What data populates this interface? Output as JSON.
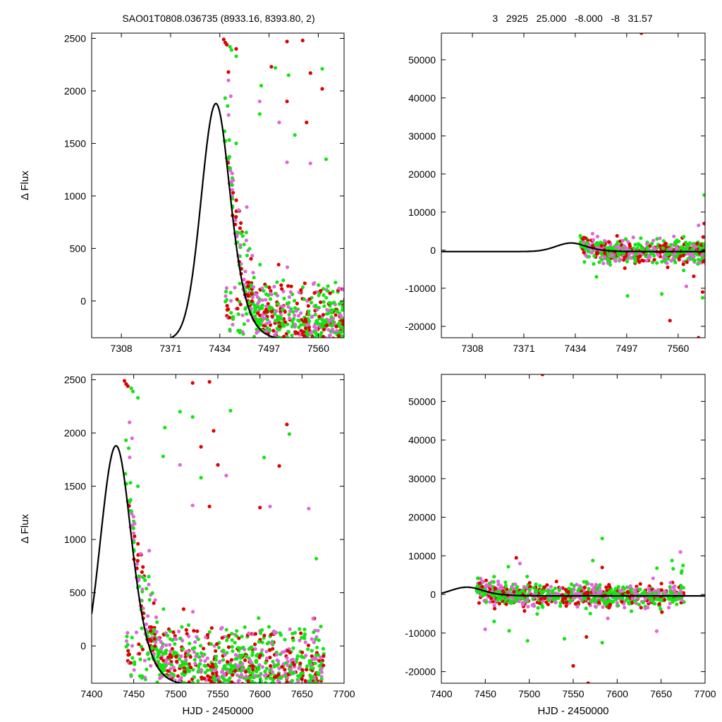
{
  "title_left": "SAO01T0808.036735 (8933.16, 8393.80,    2)",
  "title_right": "3   2925   25.000   -8.000   -8   31.57",
  "colors": {
    "red": "#e00000",
    "green": "#11e611",
    "magenta": "#e066d9",
    "curve": "#000000",
    "axis": "#000000"
  },
  "chart_data": [
    {
      "id": "top-left",
      "type": "scatter",
      "xlim": [
        7270,
        7593
      ],
      "ylim": [
        -350,
        2550
      ],
      "xticks": [
        7308,
        7371,
        7434,
        7497,
        7560
      ],
      "yticks": [
        0,
        500,
        1000,
        1500,
        2000,
        2500
      ],
      "xlabel": "",
      "ylabel": "Δ Flux",
      "data_x_range": [
        7440,
        7676
      ],
      "model": {
        "type": "peak",
        "peak_x": 7429,
        "peak_y": 1880,
        "baseline": -370,
        "rise_scale": 25,
        "fall_scale": 24
      },
      "series": [
        {
          "color": "red",
          "points": [
            [
              7439,
              2490
            ],
            [
              7441,
              2460
            ],
            [
              7443,
              2440
            ],
            [
              7520,
              2470
            ],
            [
              7540,
              2480
            ],
            [
              7550,
              2170
            ],
            [
              7545,
              1700
            ],
            [
              7565,
              2020
            ],
            [
              7520,
              1900
            ],
            [
              7445,
              2180
            ],
            [
              7500,
              2230
            ],
            [
              7455,
              2400
            ]
          ]
        },
        {
          "color": "green",
          "points": [
            [
              7447,
              2420
            ],
            [
              7449,
              2390
            ],
            [
              7455,
              2330
            ],
            [
              7505,
              2220
            ],
            [
              7565,
              2210
            ],
            [
              7522,
              2150
            ],
            [
              7487,
              2050
            ],
            [
              7530,
              1580
            ],
            [
              7485,
              1780
            ],
            [
              7455,
              1500
            ],
            [
              7570,
              1350
            ]
          ]
        },
        {
          "color": "magenta",
          "points": [
            [
              7445,
              2100
            ],
            [
              7448,
              1950
            ],
            [
              7520,
              1320
            ],
            [
              7550,
              1310
            ],
            [
              7510,
              1700
            ],
            [
              7485,
              1900
            ]
          ]
        }
      ]
    },
    {
      "id": "top-right",
      "type": "scatter",
      "xlim": [
        7270,
        7593
      ],
      "ylim": [
        -23000,
        57000
      ],
      "xticks": [
        7308,
        7371,
        7434,
        7497,
        7560
      ],
      "yticks": [
        -20000,
        -10000,
        0,
        10000,
        20000,
        30000,
        40000,
        50000
      ],
      "xlabel": "",
      "ylabel": "",
      "data_x_range": [
        7440,
        7676
      ],
      "model": {
        "type": "peak",
        "peak_x": 7429,
        "peak_y": 1880,
        "baseline": -370,
        "rise_scale": 25,
        "fall_scale": 24
      },
      "series": [
        {
          "color": "red",
          "points": [
            [
              7515,
              57000
            ],
            [
              7550,
              -18500
            ],
            [
              7585,
              -23000
            ],
            [
              7590,
              -11000
            ],
            [
              7592,
              7000
            ]
          ]
        },
        {
          "color": "green",
          "points": [
            [
              7592,
              14500
            ],
            [
              7498,
              -12000
            ],
            [
              7540,
              -11500
            ],
            [
              7590,
              -12500
            ],
            [
              7460,
              -7000
            ]
          ]
        },
        {
          "color": "magenta",
          "points": [
            [
              7570,
              -9500
            ],
            [
              7585,
              6500
            ]
          ]
        }
      ]
    },
    {
      "id": "bottom-left",
      "type": "scatter",
      "xlim": [
        7400,
        7700
      ],
      "ylim": [
        -350,
        2550
      ],
      "xticks": [
        7400,
        7450,
        7500,
        7550,
        7600,
        7650,
        7700
      ],
      "yticks": [
        0,
        500,
        1000,
        1500,
        2000,
        2500
      ],
      "xlabel": "HJD - 2450000",
      "ylabel": "Δ Flux",
      "data_x_range": [
        7440,
        7676
      ],
      "model": {
        "type": "peak",
        "peak_x": 7429,
        "peak_y": 1880,
        "baseline": -370,
        "rise_scale": 25,
        "fall_scale": 24
      },
      "series": [
        {
          "color": "red",
          "points": [
            [
              7439,
              2490
            ],
            [
              7441,
              2460
            ],
            [
              7443,
              2440
            ],
            [
              7520,
              2470
            ],
            [
              7540,
              2480
            ],
            [
              7530,
              1870
            ],
            [
              7545,
              2020
            ],
            [
              7550,
              1700
            ],
            [
              7632,
              2080
            ],
            [
              7623,
              1690
            ],
            [
              7540,
              1310
            ],
            [
              7600,
              1300
            ]
          ]
        },
        {
          "color": "green",
          "points": [
            [
              7447,
              2420
            ],
            [
              7449,
              2390
            ],
            [
              7455,
              2330
            ],
            [
              7505,
              2200
            ],
            [
              7565,
              2210
            ],
            [
              7520,
              2150
            ],
            [
              7487,
              2050
            ],
            [
              7530,
              1580
            ],
            [
              7485,
              1780
            ],
            [
              7455,
              1500
            ],
            [
              7635,
              1990
            ],
            [
              7605,
              1770
            ],
            [
              7667,
              820
            ]
          ]
        },
        {
          "color": "magenta",
          "points": [
            [
              7445,
              2100
            ],
            [
              7448,
              1950
            ],
            [
              7505,
              1700
            ],
            [
              7520,
              1320
            ],
            [
              7560,
              1600
            ],
            [
              7658,
              1290
            ],
            [
              7612,
              1310
            ]
          ]
        }
      ]
    },
    {
      "id": "bottom-right",
      "type": "scatter",
      "xlim": [
        7400,
        7700
      ],
      "ylim": [
        -23000,
        57000
      ],
      "xticks": [
        7400,
        7450,
        7500,
        7550,
        7600,
        7650,
        7700
      ],
      "yticks": [
        -20000,
        -10000,
        0,
        10000,
        20000,
        30000,
        40000,
        50000
      ],
      "xlabel": "HJD - 2450000",
      "ylabel": "",
      "data_x_range": [
        7440,
        7676
      ],
      "model": {
        "type": "peak",
        "peak_x": 7429,
        "peak_y": 1880,
        "baseline": -370,
        "rise_scale": 25,
        "fall_scale": 24
      },
      "series": [
        {
          "color": "red",
          "points": [
            [
              7515,
              57000
            ],
            [
              7550,
              -18500
            ],
            [
              7567,
              -23000
            ],
            [
              7565,
              -11000
            ],
            [
              7583,
              7000
            ]
          ]
        },
        {
          "color": "green",
          "points": [
            [
              7583,
              14500
            ],
            [
              7498,
              -12000
            ],
            [
              7540,
              -11500
            ],
            [
              7583,
              -12500
            ],
            [
              7675,
              7500
            ],
            [
              7460,
              -7000
            ]
          ]
        },
        {
          "color": "magenta",
          "points": [
            [
              7672,
              11000
            ],
            [
              7645,
              -9500
            ]
          ]
        }
      ]
    }
  ]
}
